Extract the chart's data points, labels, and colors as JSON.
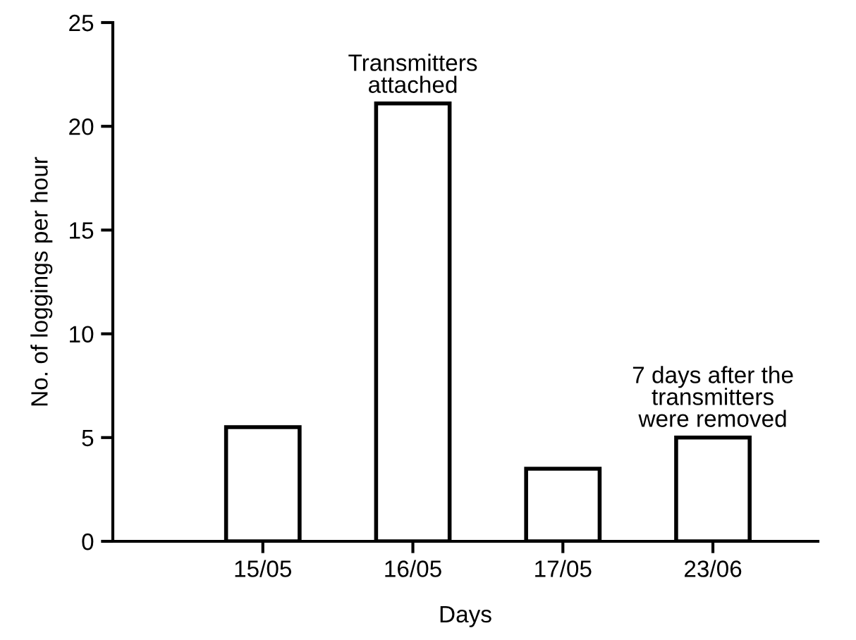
{
  "chart_data": {
    "type": "bar",
    "xlabel": "Days",
    "ylabel": "No. of loggings per hour",
    "categories": [
      "15/05",
      "16/05",
      "17/05",
      "23/06"
    ],
    "values": [
      5.5,
      21.1,
      3.5,
      5.0
    ],
    "color": "#ffffff",
    "ylim": [
      0,
      25
    ],
    "yticks": [
      0,
      5,
      10,
      15,
      20,
      25
    ],
    "grid": false,
    "legend": false,
    "annotations": [
      {
        "text": "Transmitters\nattached",
        "x": "16/05",
        "y": 21.1
      },
      {
        "text": "7 days after the\ntransmitters\nwere removed",
        "x": "23/06",
        "y": 5.0
      }
    ]
  }
}
